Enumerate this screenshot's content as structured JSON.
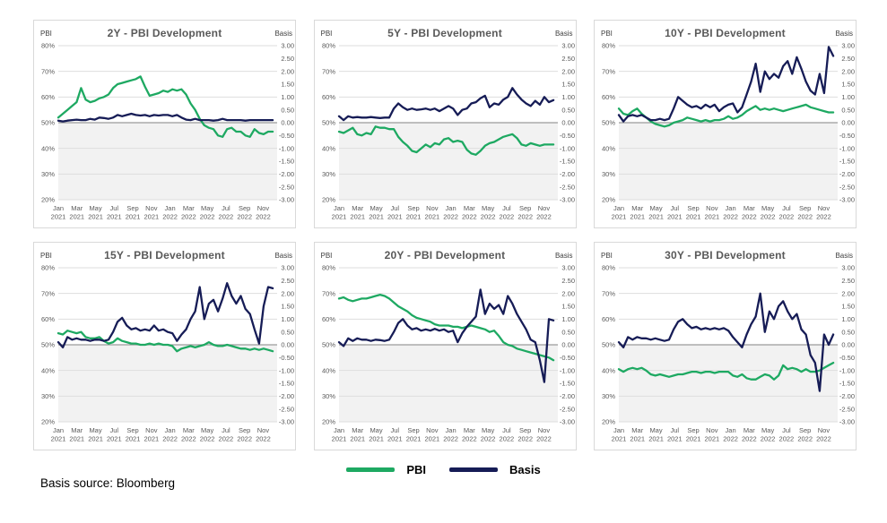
{
  "footer": {
    "note": "Basis source: Bloomberg"
  },
  "legend": {
    "items": [
      {
        "label": "PBI",
        "color": "#1ea962"
      },
      {
        "label": "Basis",
        "color": "#161c56"
      }
    ]
  },
  "colors": {
    "pbi_line": "#1ea962",
    "basis_line": "#161c56",
    "title_gray": "#595959",
    "tick_gray": "#595959",
    "gridline": "#dedede",
    "zero_line": "#9b9b9b",
    "negative_band": "#f2f2f2",
    "card_border": "#d9d9d9"
  },
  "chart_common": {
    "left_axis": {
      "title": "PBI",
      "min": 20,
      "max": 80,
      "ticks": [
        "80%",
        "70%",
        "60%",
        "50%",
        "40%",
        "30%",
        "20%"
      ]
    },
    "right_axis": {
      "title": "Basis",
      "min": -3,
      "max": 3,
      "ticks": [
        "3.00",
        "2.50",
        "2.00",
        "1.50",
        "1.00",
        "0.50",
        "0.00",
        "-0.50",
        "-1.00",
        "-1.50",
        "-2.00",
        "-2.50",
        "-3.00"
      ]
    },
    "x_ticks": [
      {
        "month": "Jan",
        "year": "2021"
      },
      {
        "month": "Mar",
        "year": "2021"
      },
      {
        "month": "May",
        "year": "2021"
      },
      {
        "month": "Jul",
        "year": "2021"
      },
      {
        "month": "Sep",
        "year": "2021"
      },
      {
        "month": "Nov",
        "year": "2021"
      },
      {
        "month": "Jan",
        "year": "2022"
      },
      {
        "month": "Mar",
        "year": "2022"
      },
      {
        "month": "May",
        "year": "2022"
      },
      {
        "month": "Jul",
        "year": "2022"
      },
      {
        "month": "Sep",
        "year": "2022"
      },
      {
        "month": "Nov",
        "year": "2022"
      }
    ],
    "grid": true,
    "legend_position": "bottom"
  },
  "chart_data": [
    {
      "type": "line",
      "title": "2Y - PBI Development",
      "series": [
        {
          "name": "PBI",
          "axis": "left",
          "values": [
            52,
            53.5,
            55,
            56.5,
            58,
            63.5,
            59,
            58,
            58.5,
            59.5,
            60,
            61,
            63.5,
            65,
            65.5,
            66,
            66.5,
            67,
            68,
            64,
            60.5,
            61,
            61.5,
            62.5,
            62,
            63,
            62.5,
            63,
            61,
            57.5,
            55,
            51.5,
            49,
            48,
            47.5,
            45,
            44.5,
            47.5,
            48,
            46.5,
            46.5,
            45,
            44.5,
            47.5,
            46,
            45.5,
            46.5,
            46.5
          ]
        },
        {
          "name": "Basis",
          "axis": "right",
          "values": [
            0.08,
            0.05,
            0.08,
            0.1,
            0.12,
            0.1,
            0.1,
            0.15,
            0.12,
            0.2,
            0.18,
            0.15,
            0.2,
            0.3,
            0.25,
            0.3,
            0.35,
            0.3,
            0.28,
            0.3,
            0.25,
            0.3,
            0.28,
            0.3,
            0.3,
            0.25,
            0.3,
            0.2,
            0.12,
            0.1,
            0.15,
            0.1,
            0.1,
            0.1,
            0.08,
            0.1,
            0.15,
            0.1,
            0.1,
            0.1,
            0.1,
            0.08,
            0.1,
            0.1,
            0.1,
            0.1,
            0.1,
            0.1
          ]
        }
      ]
    },
    {
      "type": "line",
      "title": "5Y - PBI Development",
      "series": [
        {
          "name": "PBI",
          "axis": "left",
          "values": [
            46.5,
            46,
            47,
            48,
            45.5,
            45,
            46,
            45.5,
            48.5,
            48,
            48,
            47.5,
            47.5,
            44.5,
            42.5,
            41,
            39,
            38.5,
            40,
            41.5,
            40.5,
            42,
            41.5,
            43.5,
            44,
            42.5,
            43,
            42.5,
            39.5,
            38,
            37.5,
            39,
            41,
            42,
            42.5,
            43.5,
            44.5,
            45,
            45.5,
            44,
            41.5,
            41,
            42,
            41.5,
            41,
            41.5,
            41.5,
            41.5
          ]
        },
        {
          "name": "Basis",
          "axis": "right",
          "values": [
            0.25,
            0.1,
            0.25,
            0.2,
            0.22,
            0.2,
            0.2,
            0.22,
            0.2,
            0.18,
            0.2,
            0.2,
            0.55,
            0.75,
            0.6,
            0.5,
            0.55,
            0.5,
            0.52,
            0.55,
            0.5,
            0.55,
            0.45,
            0.55,
            0.65,
            0.55,
            0.3,
            0.5,
            0.55,
            0.75,
            0.8,
            0.95,
            1.05,
            0.6,
            0.75,
            0.7,
            0.9,
            1.0,
            1.35,
            1.1,
            0.9,
            0.75,
            0.65,
            0.85,
            0.7,
            1.0,
            0.8,
            0.88
          ]
        }
      ]
    },
    {
      "type": "line",
      "title": "10Y - PBI Development",
      "series": [
        {
          "name": "PBI",
          "axis": "left",
          "values": [
            55.5,
            53.5,
            53,
            54.5,
            55.5,
            53.5,
            52,
            50.5,
            49.5,
            49,
            48.5,
            49,
            50,
            50.5,
            51,
            52,
            51.5,
            51,
            50.5,
            51,
            50.5,
            51,
            51,
            51.5,
            52.5,
            51.5,
            52,
            53,
            54.5,
            55.5,
            56.5,
            55,
            55.5,
            55,
            55.5,
            55,
            54.5,
            55,
            55.5,
            56,
            56.5,
            57,
            56,
            55.5,
            55,
            54.5,
            54,
            54
          ]
        },
        {
          "name": "Basis",
          "axis": "right",
          "values": [
            0.3,
            0.05,
            0.25,
            0.3,
            0.25,
            0.3,
            0.2,
            0.1,
            0.1,
            0.15,
            0.1,
            0.15,
            0.55,
            1.0,
            0.85,
            0.7,
            0.6,
            0.65,
            0.55,
            0.7,
            0.6,
            0.7,
            0.45,
            0.6,
            0.7,
            0.75,
            0.4,
            0.6,
            1.1,
            1.6,
            2.3,
            1.2,
            2.0,
            1.7,
            1.9,
            1.75,
            2.2,
            2.4,
            1.9,
            2.55,
            2.1,
            1.6,
            1.25,
            1.1,
            1.9,
            1.15,
            2.95,
            2.6
          ]
        }
      ]
    },
    {
      "type": "line",
      "title": "15Y - PBI Development",
      "series": [
        {
          "name": "PBI",
          "axis": "left",
          "values": [
            54.5,
            54,
            55.5,
            55,
            54.5,
            55,
            53,
            52.5,
            52.5,
            53,
            51.5,
            50.5,
            51,
            52.5,
            51.5,
            51,
            50.5,
            50.5,
            50,
            50,
            50.5,
            50,
            50.5,
            50,
            50,
            49.5,
            47.5,
            48.5,
            49,
            49.5,
            49,
            49.5,
            50,
            51,
            50,
            49.5,
            49.5,
            50,
            49.5,
            49,
            48.5,
            48.5,
            48,
            48.5,
            48,
            48.5,
            48,
            47.5
          ]
        },
        {
          "name": "Basis",
          "axis": "right",
          "values": [
            0.1,
            -0.1,
            0.3,
            0.2,
            0.25,
            0.2,
            0.2,
            0.15,
            0.2,
            0.2,
            0.15,
            0.2,
            0.5,
            0.9,
            1.05,
            0.75,
            0.6,
            0.65,
            0.55,
            0.6,
            0.55,
            0.75,
            0.55,
            0.6,
            0.5,
            0.45,
            0.15,
            0.4,
            0.6,
            1.0,
            1.3,
            2.25,
            1.0,
            1.6,
            1.75,
            1.3,
            1.8,
            2.4,
            1.9,
            1.6,
            1.9,
            1.4,
            1.2,
            0.6,
            0.05,
            1.5,
            2.25,
            2.2
          ]
        }
      ]
    },
    {
      "type": "line",
      "title": "20Y - PBI Development",
      "series": [
        {
          "name": "PBI",
          "axis": "left",
          "values": [
            68,
            68.5,
            67.5,
            67,
            67.5,
            68,
            68,
            68.5,
            69,
            69.5,
            69,
            68,
            66.5,
            65,
            64,
            63,
            61.5,
            60.5,
            60,
            59.5,
            59,
            58,
            57.5,
            57.5,
            57.5,
            57,
            57,
            56.5,
            57,
            57.5,
            57,
            56.5,
            56,
            55,
            55.5,
            53.5,
            51,
            50,
            49.5,
            48.5,
            48,
            47.5,
            47,
            46.5,
            46,
            45.5,
            45,
            44
          ]
        },
        {
          "name": "Basis",
          "axis": "right",
          "values": [
            0.1,
            -0.05,
            0.25,
            0.15,
            0.25,
            0.2,
            0.2,
            0.15,
            0.2,
            0.18,
            0.15,
            0.2,
            0.5,
            0.85,
            1.0,
            0.75,
            0.6,
            0.65,
            0.55,
            0.6,
            0.55,
            0.62,
            0.55,
            0.6,
            0.5,
            0.55,
            0.1,
            0.45,
            0.7,
            0.9,
            1.1,
            2.15,
            1.2,
            1.6,
            1.4,
            1.55,
            1.2,
            1.9,
            1.6,
            1.2,
            0.9,
            0.6,
            0.2,
            0.1,
            -0.6,
            -1.45,
            1.0,
            0.95
          ]
        }
      ]
    },
    {
      "type": "line",
      "title": "30Y - PBI Development",
      "series": [
        {
          "name": "PBI",
          "axis": "left",
          "values": [
            40.5,
            39.5,
            40.5,
            41,
            40.5,
            41,
            40,
            38.5,
            38,
            38.5,
            38,
            37.5,
            38,
            38.5,
            38.5,
            39,
            39.5,
            39.5,
            39,
            39.5,
            39.5,
            39,
            39.5,
            39.5,
            39.5,
            38,
            37.5,
            38.5,
            37,
            36.5,
            36.5,
            37.5,
            38.5,
            38,
            36.5,
            38,
            42,
            40.5,
            41,
            40.5,
            39.5,
            40.5,
            39.5,
            39.5,
            40,
            41,
            42,
            43
          ]
        },
        {
          "name": "Basis",
          "axis": "right",
          "values": [
            0.1,
            -0.1,
            0.3,
            0.2,
            0.3,
            0.25,
            0.25,
            0.2,
            0.25,
            0.2,
            0.15,
            0.2,
            0.6,
            0.9,
            1.0,
            0.8,
            0.65,
            0.7,
            0.6,
            0.65,
            0.6,
            0.65,
            0.6,
            0.65,
            0.55,
            0.3,
            0.1,
            -0.1,
            0.4,
            0.8,
            1.1,
            2.0,
            0.5,
            1.3,
            1.0,
            1.5,
            1.7,
            1.3,
            1.0,
            1.2,
            0.6,
            0.4,
            -0.4,
            -0.7,
            -1.8,
            0.4,
            0.0,
            0.4
          ]
        }
      ]
    }
  ]
}
